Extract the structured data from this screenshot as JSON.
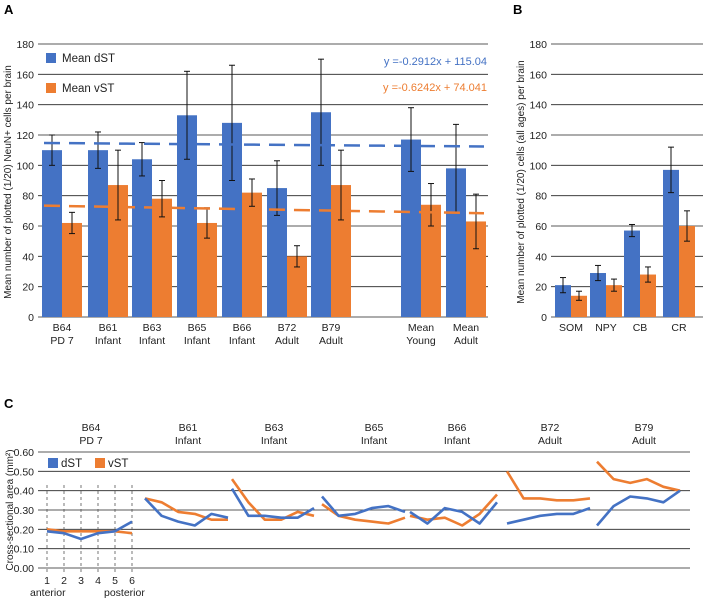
{
  "colors": {
    "dST": "#4472C4",
    "vST": "#ED7D31",
    "grid": "#222222",
    "error": "#111111"
  },
  "chart_data": [
    {
      "panel": "A",
      "type": "bar",
      "ylabel": "Mean number of plotted (1/20) NeuN+ cells per brain",
      "ylim": [
        0,
        180
      ],
      "yticks": [
        0,
        20,
        40,
        60,
        80,
        100,
        120,
        140,
        160,
        180
      ],
      "categories": [
        [
          "B64",
          "PD 7"
        ],
        [
          "B61",
          "Infant"
        ],
        [
          "B63",
          "Infant"
        ],
        [
          "B65",
          "Infant"
        ],
        [
          "B66",
          "Infant"
        ],
        [
          "B72",
          "Adult"
        ],
        [
          "B79",
          "Adult"
        ],
        [
          "Mean",
          "Young"
        ],
        [
          "Mean",
          "Adult"
        ]
      ],
      "series": [
        {
          "name": "Mean dST",
          "values": [
            110,
            110,
            104,
            133,
            128,
            85,
            135,
            117,
            98
          ],
          "err": [
            10,
            12,
            11,
            29,
            38,
            18,
            35,
            21,
            29
          ]
        },
        {
          "name": "Mean vST",
          "values": [
            62,
            87,
            78,
            62,
            82,
            40,
            87,
            74,
            63
          ],
          "err": [
            7,
            23,
            12,
            10,
            9,
            7,
            23,
            14,
            18
          ]
        }
      ],
      "trendlines": [
        {
          "series": "Mean dST",
          "equation": "y =-0.2912x + 115.04"
        },
        {
          "series": "Mean vST",
          "equation": "y =-0.6242x + 74.041"
        }
      ],
      "legend": "top-left"
    },
    {
      "panel": "B",
      "type": "bar",
      "ylabel": "Mean number of plotted (1/20) cells (all ages) per brain",
      "ylim": [
        0,
        180
      ],
      "yticks": [
        0,
        20,
        40,
        60,
        80,
        100,
        120,
        140,
        160,
        180
      ],
      "categories": [
        "SOM",
        "NPY",
        "CB",
        "CR"
      ],
      "series": [
        {
          "name": "dST",
          "values": [
            21,
            29,
            57,
            97
          ],
          "err": [
            5,
            5,
            4,
            15
          ]
        },
        {
          "name": "vST",
          "values": [
            14,
            21,
            28,
            60
          ],
          "err": [
            3,
            4,
            5,
            10
          ]
        }
      ]
    },
    {
      "panel": "C",
      "type": "line",
      "ylabel": "Cross-sectional area (mm²)",
      "ylim": [
        0,
        0.6
      ],
      "yticks": [
        "0.00",
        "0.10",
        "0.20",
        "0.30",
        "0.40",
        "0.50",
        "0.60"
      ],
      "groups": [
        [
          "B64",
          "PD 7"
        ],
        [
          "B61",
          "Infant"
        ],
        [
          "B63",
          "Infant"
        ],
        [
          "B65",
          "Infant"
        ],
        [
          "B66",
          "Infant"
        ],
        [
          "B72",
          "Adult"
        ],
        [
          "B79",
          "Adult"
        ]
      ],
      "x_ticks": [
        "1",
        "2",
        "3",
        "4",
        "5",
        "6"
      ],
      "x_end_labels": {
        "start": "anterior",
        "end": "posterior"
      },
      "series": [
        {
          "name": "dST",
          "values": [
            [
              0.19,
              0.18,
              0.15,
              0.18,
              0.19,
              0.24
            ],
            [
              0.36,
              0.27,
              0.24,
              0.22,
              0.28,
              0.26
            ],
            [
              0.41,
              0.27,
              0.27,
              0.26,
              0.26,
              0.31
            ],
            [
              0.37,
              0.27,
              0.28,
              0.31,
              0.32,
              0.29
            ],
            [
              0.29,
              0.23,
              0.31,
              0.29,
              0.23,
              0.34
            ],
            [
              0.23,
              0.25,
              0.27,
              0.28,
              0.28,
              0.31
            ],
            [
              0.22,
              0.32,
              0.37,
              0.36,
              0.34,
              0.4
            ]
          ]
        },
        {
          "name": "vST",
          "values": [
            [
              0.2,
              0.19,
              0.19,
              0.19,
              0.19,
              0.18
            ],
            [
              0.36,
              0.34,
              0.29,
              0.28,
              0.25,
              0.25
            ],
            [
              0.46,
              0.34,
              0.25,
              0.25,
              0.29,
              0.27
            ],
            [
              0.33,
              0.27,
              0.25,
              0.24,
              0.23,
              0.26
            ],
            [
              0.27,
              0.25,
              0.26,
              0.22,
              0.28,
              0.38
            ],
            [
              0.5,
              0.36,
              0.36,
              0.35,
              0.35,
              0.36
            ],
            [
              0.55,
              0.46,
              0.44,
              0.46,
              0.42,
              0.4
            ]
          ]
        }
      ],
      "legend": "top-left"
    }
  ]
}
